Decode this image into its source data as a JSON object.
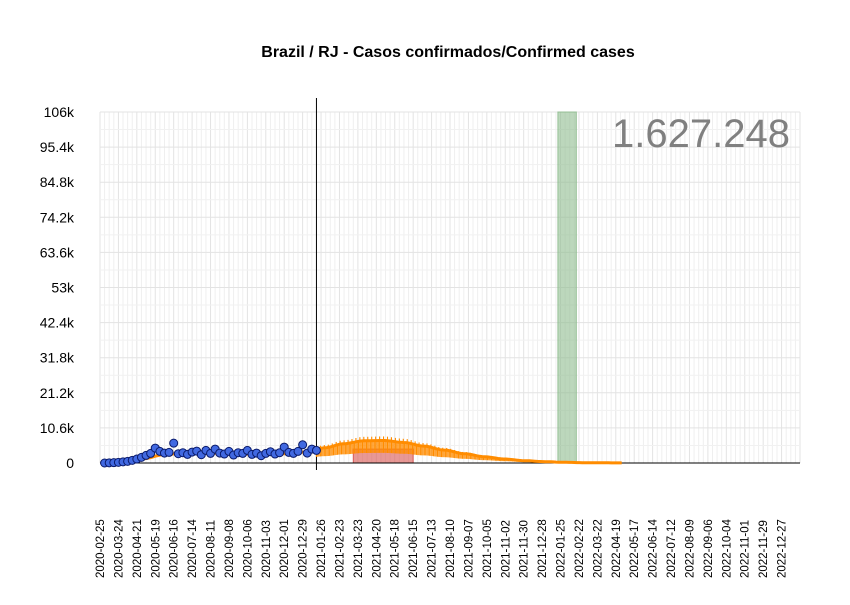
{
  "chart_data": {
    "type": "scatter",
    "title": "Brazil / RJ - Casos confirmados/Confirmed cases",
    "xlabel": "",
    "ylabel": "",
    "total_label": "1.627.248",
    "x_axis": {
      "start": "2020-02-25",
      "end": "2023-01-24",
      "tick_labels": [
        "2020-02-25",
        "2020-03-24",
        "2020-04-21",
        "2020-05-19",
        "2020-06-16",
        "2020-07-14",
        "2020-08-11",
        "2020-09-08",
        "2020-10-06",
        "2020-11-03",
        "2020-12-01",
        "2020-12-29",
        "2021-01-26",
        "2021-02-23",
        "2021-03-23",
        "2021-04-20",
        "2021-05-18",
        "2021-06-15",
        "2021-07-13",
        "2021-08-10",
        "2021-09-07",
        "2021-10-05",
        "2021-11-02",
        "2021-11-30",
        "2021-12-28",
        "2022-01-25",
        "2022-02-22",
        "2022-03-22",
        "2022-04-19",
        "2022-05-17",
        "2022-06-14",
        "2022-07-12",
        "2022-08-09",
        "2022-09-06",
        "2022-10-04",
        "2022-11-01",
        "2022-11-29",
        "2022-12-27"
      ]
    },
    "y_axis": {
      "min": 0,
      "max": 106000,
      "tick_values": [
        0,
        10600,
        21200,
        31800,
        42400,
        53000,
        63600,
        74200,
        84800,
        95400,
        106000
      ],
      "tick_labels": [
        "0",
        "10.6k",
        "21.2k",
        "31.8k",
        "42.4k",
        "53k",
        "63.6k",
        "74.2k",
        "84.8k",
        "95.4k",
        "106k"
      ]
    },
    "grid": true,
    "current_date": "2021-01-19",
    "highlight_regions": [
      {
        "start": "2022-01-21",
        "end": "2022-02-18",
        "ymin": 0,
        "ymax": 106000,
        "color": "#8fbc8f"
      },
      {
        "start": "2021-03-16",
        "end": "2021-06-15",
        "ymin": 0,
        "ymax": 4200,
        "color": "#d9534f"
      }
    ],
    "series": [
      {
        "kind": "observed_points",
        "color": "#4169e1",
        "x": [
          "2020-03-03",
          "2020-03-10",
          "2020-03-17",
          "2020-03-24",
          "2020-03-31",
          "2020-04-07",
          "2020-04-14",
          "2020-04-21",
          "2020-04-28",
          "2020-05-05",
          "2020-05-12",
          "2020-05-19",
          "2020-05-26",
          "2020-06-02",
          "2020-06-09",
          "2020-06-16",
          "2020-06-23",
          "2020-06-30",
          "2020-07-07",
          "2020-07-14",
          "2020-07-21",
          "2020-07-28",
          "2020-08-04",
          "2020-08-11",
          "2020-08-18",
          "2020-08-25",
          "2020-09-01",
          "2020-09-08",
          "2020-09-15",
          "2020-09-22",
          "2020-09-29",
          "2020-10-06",
          "2020-10-13",
          "2020-10-20",
          "2020-10-27",
          "2020-11-03",
          "2020-11-10",
          "2020-11-17",
          "2020-11-24",
          "2020-12-01",
          "2020-12-08",
          "2020-12-15",
          "2020-12-22",
          "2020-12-29",
          "2021-01-05",
          "2021-01-12",
          "2021-01-19"
        ],
        "y": [
          0,
          50,
          100,
          200,
          350,
          500,
          800,
          1200,
          1700,
          2300,
          2900,
          4500,
          3500,
          3000,
          3200,
          6000,
          2800,
          3100,
          2600,
          3300,
          3600,
          2500,
          3800,
          2900,
          4200,
          3000,
          2700,
          3500,
          2400,
          3100,
          2900,
          3800,
          2600,
          3000,
          2200,
          2900,
          3400,
          2700,
          3100,
          4800,
          3200,
          2900,
          3500,
          5500,
          3000,
          4200,
          3800
        ]
      },
      {
        "kind": "fitted_curve",
        "color": "#ff8c00",
        "x": [
          "2020-03-01",
          "2020-04-01",
          "2020-05-01",
          "2020-06-01",
          "2020-07-01",
          "2020-08-01",
          "2020-09-01",
          "2020-10-01",
          "2020-11-01",
          "2020-12-01",
          "2021-01-01",
          "2021-02-01",
          "2021-03-01",
          "2021-04-01",
          "2021-05-01",
          "2021-06-01",
          "2021-07-01",
          "2021-08-01",
          "2021-09-01",
          "2021-10-01",
          "2021-11-01",
          "2021-12-01",
          "2022-01-01",
          "2022-02-01",
          "2022-03-01",
          "2022-04-01",
          "2022-05-01"
        ],
        "y": [
          0,
          300,
          1300,
          2500,
          3000,
          3000,
          2900,
          2700,
          2600,
          2800,
          3300,
          4600,
          5800,
          6700,
          6800,
          6200,
          5100,
          3900,
          2800,
          1900,
          1200,
          700,
          400,
          200,
          100,
          50,
          20
        ]
      }
    ]
  }
}
